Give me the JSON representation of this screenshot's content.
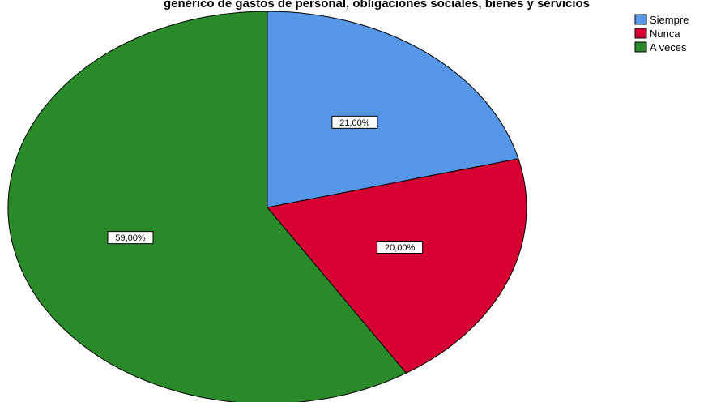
{
  "chart_data": {
    "type": "pie",
    "title": "genérico de gastos de personal, obligaciones sociales, bienes y servicios",
    "categories": [
      "Siempre",
      "Nunca",
      "A veces"
    ],
    "values": [
      21.0,
      20.0,
      59.0
    ],
    "data_labels": [
      "21,00%",
      "20,00%",
      "59,00%"
    ],
    "colors": [
      "#5596e6",
      "#d70032",
      "#2a8a2a"
    ],
    "start_angle": "12 o'clock",
    "direction": "clockwise",
    "legend_position": "top-right"
  },
  "legend": {
    "items": [
      {
        "label": "Siempre",
        "color": "#5596e6"
      },
      {
        "label": "Nunca",
        "color": "#d70032"
      },
      {
        "label": "A veces",
        "color": "#2a8a2a"
      }
    ]
  }
}
